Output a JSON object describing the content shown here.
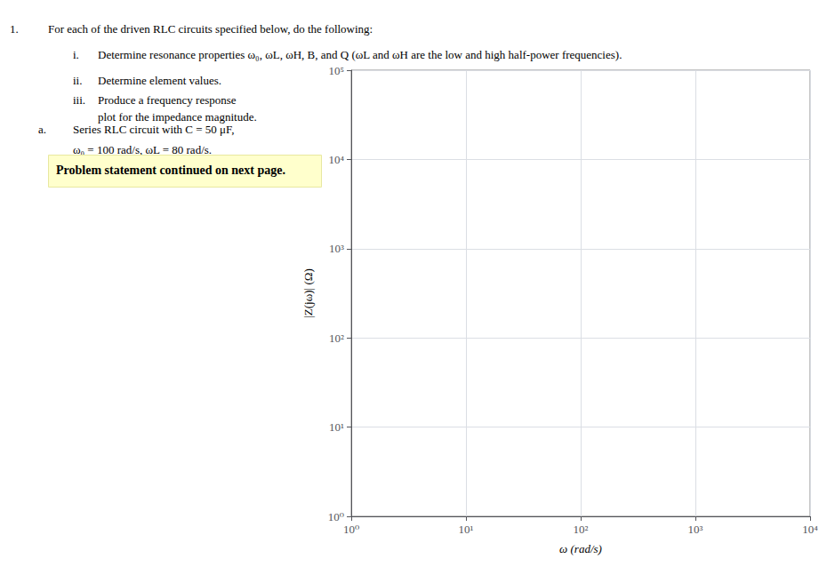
{
  "chart_data": {
    "type": "line",
    "xlabel": "ω (rad/s)",
    "ylabel": "|Z(jω)| (Ω)",
    "log": true,
    "grid": true,
    "xlim": [
      1,
      10000
    ],
    "ylim": [
      1,
      100000
    ],
    "xticks": [
      {
        "value": 1,
        "label": "10⁰"
      },
      {
        "value": 10,
        "label": "10¹"
      },
      {
        "value": 100,
        "label": "10²"
      },
      {
        "value": 1000,
        "label": "10³"
      },
      {
        "value": 10000,
        "label": "10⁴"
      }
    ],
    "yticks": [
      {
        "value": 1,
        "label": "10⁰"
      },
      {
        "value": 10,
        "label": "10¹"
      },
      {
        "value": 100,
        "label": "10²"
      },
      {
        "value": 1000,
        "label": "10³"
      },
      {
        "value": 10000,
        "label": "10⁴"
      },
      {
        "value": 100000,
        "label": "10⁵"
      }
    ],
    "series": [],
    "annotations": [
      "1.",
      "For each of the driven RLC circuits specified below, do the following:",
      "i.",
      "Determine resonance properties ω₀, ωL, ωH, B, and Q (ωL and ωH are the low and high half-power frequencies).",
      "ii.",
      "Determine element values.",
      "iii.",
      "Produce a frequency response\nplot for the impedance magnitude.",
      "a.",
      "Series RLC circuit with C = 50 μF,",
      "ω₀ = 100 rad/s, ωL = 80 rad/s.",
      "Problem statement continued on next page."
    ]
  }
}
